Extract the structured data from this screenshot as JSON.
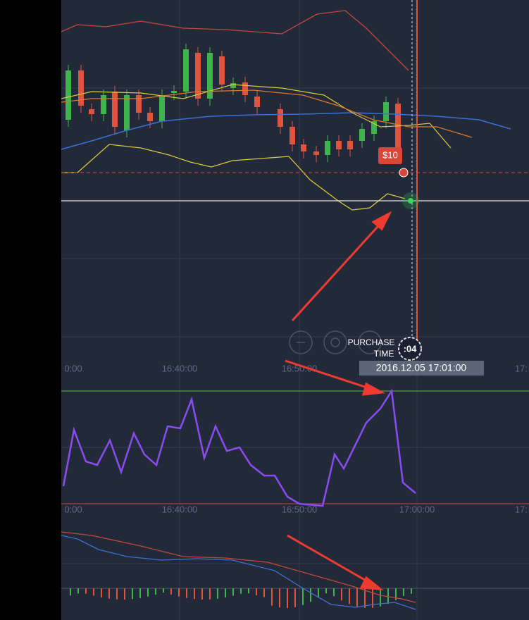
{
  "trade": {
    "amount": "$10",
    "purchase_label": [
      "PURCHASE",
      "TIME"
    ],
    "countdown": ":04",
    "timestamp": "2016.12.05 17:01:00"
  },
  "main_axis": {
    "labels": [
      "0:00",
      "16:40:00",
      "16:50:00",
      "17:"
    ]
  },
  "oscillator_axis": {
    "labels": [
      "0:00",
      "16:40:00",
      "16:50:00",
      "17:00:00",
      "17:"
    ]
  }
}
